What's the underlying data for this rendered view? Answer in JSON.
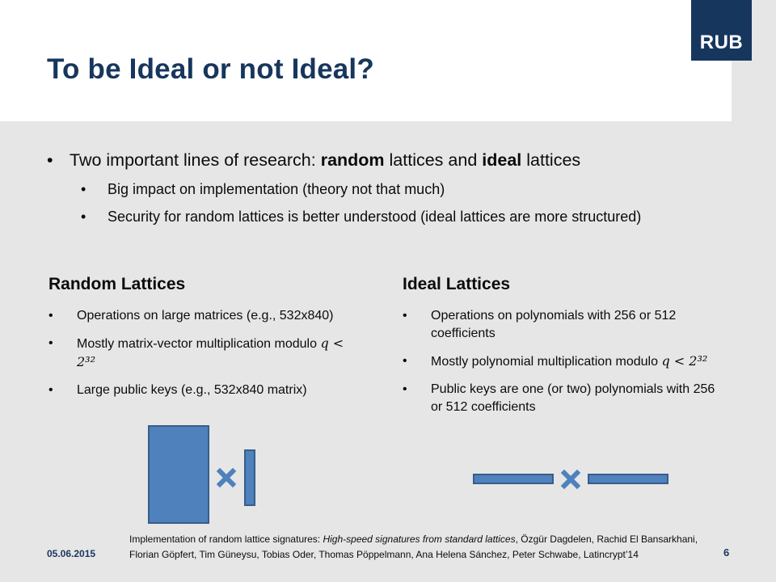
{
  "header": {
    "title": "To be Ideal or not Ideal?",
    "logo_text": "RUB"
  },
  "main": {
    "bullet1": {
      "prefix": "Two important lines of research: ",
      "bold1": "random",
      "mid": " lattices and ",
      "bold2": "ideal",
      "suffix": " lattices"
    },
    "sub_bullets": [
      "Big impact on implementation (theory not that much)",
      "Security for random lattices is better understood (ideal lattices are more structured)"
    ]
  },
  "random": {
    "heading": "Random Lattices",
    "items": [
      "Operations on large matrices (e.g., 532x840)",
      "Mostly matrix-vector multiplication modulo",
      "Large public keys (e.g., 532x840 matrix)"
    ],
    "math": "q < 2³²"
  },
  "ideal": {
    "heading": "Ideal Lattices",
    "items": [
      "Operations on polynomials with 256 or 512 coefficients",
      "Mostly polynomial multiplication modulo",
      "Public keys are one (or two) polynomials with 256 or 512 coefficients"
    ],
    "math": "q < 2³²"
  },
  "footer": {
    "date": "05.06.2015",
    "page": "6",
    "footnote_prefix": "Implementation of random lattice signatures: ",
    "footnote_title": "High-speed signatures from standard lattices",
    "footnote_authors": ", Özgür Dagdelen, Rachid El Bansarkhani, Florian Göpfert, Tim Güneysu, Tobias Oder, Thomas Pöppelmann, Ana Helena Sánchez, Peter Schwabe, Latincrypt’14"
  },
  "colors": {
    "accent": "#17365d",
    "block_fill": "#4f81bd",
    "block_border": "#385d8a",
    "background": "#e6e6e6"
  },
  "icons": [
    "multiply-icon"
  ]
}
